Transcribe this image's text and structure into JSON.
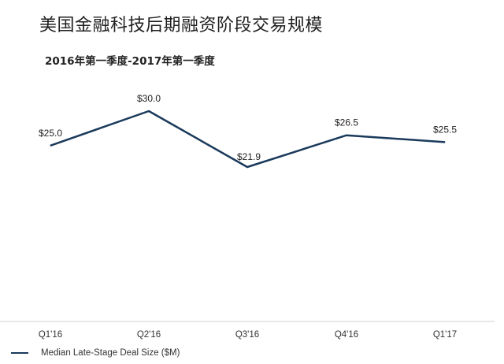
{
  "title": "美国金融科技后期融资阶段交易规模",
  "subtitle": "2016年第一季度-2017年第一季度",
  "colors": {
    "series_line": "#1a3a5c",
    "axis": "#cfcfcf",
    "text": "#222222"
  },
  "chart_data": {
    "type": "line",
    "title": "美国金融科技后期融资阶段交易规模",
    "subtitle": "2016年第一季度-2017年第一季度",
    "categories": [
      "Q1'16",
      "Q2'16",
      "Q3'16",
      "Q4'16",
      "Q1'17"
    ],
    "series": [
      {
        "name": "Median Late-Stage Deal Size ($M)",
        "values": [
          25.0,
          30.0,
          21.9,
          26.5,
          25.5
        ],
        "labels": [
          "$25.0",
          "$30.0",
          "$21.9",
          "$26.5",
          "$25.5"
        ]
      }
    ],
    "xlabel": "",
    "ylabel": "",
    "grid": false,
    "legend_position": "bottom-left"
  }
}
